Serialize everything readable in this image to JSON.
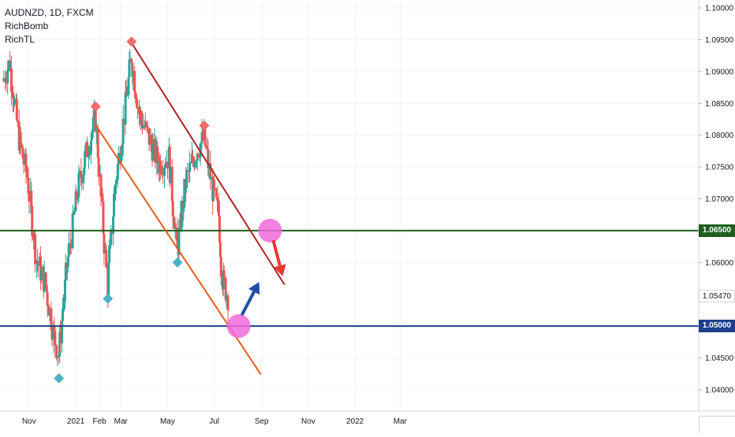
{
  "legend": {
    "symbol_line": "AUDNZD, 1D, FXCM",
    "indicator1": "RichBomb",
    "indicator2": "RichTL"
  },
  "colors": {
    "up_candle": "#26a69a",
    "down_candle": "#ef5350",
    "resistance_line": "#1e5e1e",
    "support_line": "#1e3f8f",
    "upper_channel": "#b22222",
    "lower_channel": "#e65c1a",
    "marker_top": "#f06b6b",
    "marker_bottom": "#4bb3c4",
    "highlight_circle": "#f06ad8",
    "arrow_up": "#1e4fa8",
    "arrow_down": "#e53935",
    "current_price_tag": "#ffffff"
  },
  "price_axis": {
    "ticks": [
      "1.10000",
      "1.09500",
      "1.09000",
      "1.08500",
      "1.08000",
      "1.07500",
      "1.07000",
      "1.06500",
      "1.06000",
      "1.05470",
      "1.05000",
      "1.04500",
      "1.04000"
    ]
  },
  "time_axis": {
    "ticks": [
      "Nov",
      "2021",
      "Feb",
      "Mar",
      "May",
      "Jul",
      "Sep",
      "Nov",
      "2022",
      "Mar"
    ]
  },
  "price_tags": {
    "resistance": "1.06500",
    "current": "1.05470",
    "support": "1.05000"
  },
  "chart_data": {
    "type": "candlestick",
    "symbol": "AUDNZD",
    "timeframe": "1D",
    "source": "FXCM",
    "ylim": [
      1.0375,
      1.1015
    ],
    "horizontal_levels": [
      {
        "label": "1.06500",
        "value": 1.065
      },
      {
        "label": "1.05000",
        "value": 1.05
      }
    ],
    "current_price": 1.0547,
    "trendlines": [
      {
        "name": "upper-channel",
        "from": {
          "date": "2021-03-15",
          "price": 1.0945
        },
        "to": {
          "date": "2021-10-01",
          "price": 1.0565
        }
      },
      {
        "name": "lower-channel",
        "from": {
          "date": "2021-01-27",
          "price": 1.0816
        },
        "to": {
          "date": "2021-08-31",
          "price": 1.0424
        }
      }
    ],
    "swing_markers": [
      {
        "type": "top",
        "date": "2021-01-27",
        "price": 1.0845
      },
      {
        "type": "bottom",
        "date": "2021-02-12",
        "price": 1.0543
      },
      {
        "type": "top",
        "date": "2021-03-15",
        "price": 1.0947
      },
      {
        "type": "bottom",
        "date": "2021-05-14",
        "price": 1.06
      },
      {
        "type": "top",
        "date": "2021-06-18",
        "price": 1.0815
      },
      {
        "type": "bottom",
        "date": "2020-12-10",
        "price": 1.0418
      }
    ],
    "closes": [
      {
        "date": "2020-09-28",
        "close": 1.0885
      },
      {
        "date": "2020-10-07",
        "close": 1.0915
      },
      {
        "date": "2020-10-19",
        "close": 1.0795
      },
      {
        "date": "2020-10-30",
        "close": 1.0735
      },
      {
        "date": "2020-11-11",
        "close": 1.0605
      },
      {
        "date": "2020-11-23",
        "close": 1.0565
      },
      {
        "date": "2020-12-03",
        "close": 1.049
      },
      {
        "date": "2020-12-10",
        "close": 1.0455
      },
      {
        "date": "2020-12-21",
        "close": 1.0595
      },
      {
        "date": "2021-01-04",
        "close": 1.0715
      },
      {
        "date": "2021-01-18",
        "close": 1.0785
      },
      {
        "date": "2021-01-27",
        "close": 1.0825
      },
      {
        "date": "2021-02-05",
        "close": 1.0675
      },
      {
        "date": "2021-02-12",
        "close": 1.0565
      },
      {
        "date": "2021-02-22",
        "close": 1.0725
      },
      {
        "date": "2021-03-03",
        "close": 1.0805
      },
      {
        "date": "2021-03-15",
        "close": 1.0925
      },
      {
        "date": "2021-03-25",
        "close": 1.0835
      },
      {
        "date": "2021-04-07",
        "close": 1.0795
      },
      {
        "date": "2021-04-20",
        "close": 1.0755
      },
      {
        "date": "2021-05-03",
        "close": 1.0765
      },
      {
        "date": "2021-05-14",
        "close": 1.0615
      },
      {
        "date": "2021-05-25",
        "close": 1.0725
      },
      {
        "date": "2021-06-08",
        "close": 1.0775
      },
      {
        "date": "2021-06-18",
        "close": 1.0795
      },
      {
        "date": "2021-06-29",
        "close": 1.0715
      },
      {
        "date": "2021-07-07",
        "close": 1.0675
      },
      {
        "date": "2021-07-12",
        "close": 1.0575
      },
      {
        "date": "2021-07-19",
        "close": 1.0547
      }
    ]
  }
}
